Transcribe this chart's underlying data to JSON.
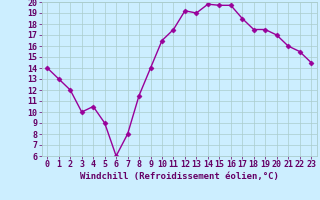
{
  "x": [
    0,
    1,
    2,
    3,
    4,
    5,
    6,
    7,
    8,
    9,
    10,
    11,
    12,
    13,
    14,
    15,
    16,
    17,
    18,
    19,
    20,
    21,
    22,
    23
  ],
  "y": [
    14,
    13,
    12,
    10,
    10.5,
    9,
    6,
    8,
    11.5,
    14,
    16.5,
    17.5,
    19.2,
    19,
    19.8,
    19.7,
    19.7,
    18.5,
    17.5,
    17.5,
    17,
    16,
    15.5,
    14.5
  ],
  "line_color": "#990099",
  "marker": "D",
  "markersize": 2.5,
  "linewidth": 1.0,
  "background_color": "#cceeff",
  "grid_color": "#aacccc",
  "xlabel": "Windchill (Refroidissement éolien,°C)",
  "xlabel_color": "#660066",
  "xlabel_fontsize": 6.5,
  "tick_color": "#660066",
  "tick_fontsize": 6,
  "ylim": [
    6,
    20
  ],
  "yticks": [
    6,
    7,
    8,
    9,
    10,
    11,
    12,
    13,
    14,
    15,
    16,
    17,
    18,
    19,
    20
  ],
  "xlim": [
    -0.5,
    23.5
  ],
  "xticks": [
    0,
    1,
    2,
    3,
    4,
    5,
    6,
    7,
    8,
    9,
    10,
    11,
    12,
    13,
    14,
    15,
    16,
    17,
    18,
    19,
    20,
    21,
    22,
    23
  ],
  "xtick_labels": [
    "0",
    "1",
    "2",
    "3",
    "4",
    "5",
    "6",
    "7",
    "8",
    "9",
    "10",
    "11",
    "12",
    "13",
    "14",
    "15",
    "16",
    "17",
    "18",
    "19",
    "20",
    "21",
    "22",
    "23"
  ]
}
